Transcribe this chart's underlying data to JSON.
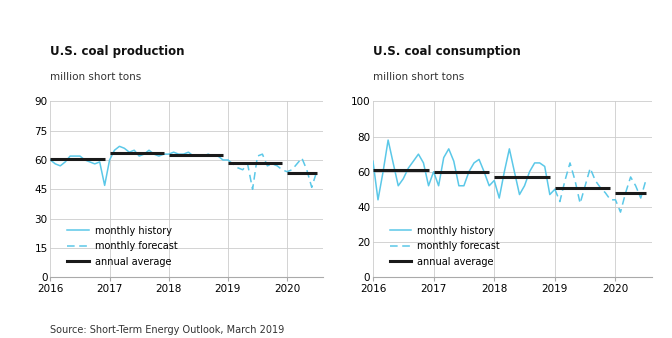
{
  "prod_title": "U.S. coal production",
  "prod_subtitle": "million short tons",
  "cons_title": "U.S. coal consumption",
  "cons_subtitle": "million short tons",
  "source_text": "Source: Short-Term Energy Outlook, March 2019",
  "line_color": "#5bc8e8",
  "annual_color": "#1a1a1a",
  "background_color": "#ffffff",
  "grid_color": "#cccccc",
  "prod_ylim": [
    0,
    90
  ],
  "prod_yticks": [
    0,
    15,
    30,
    45,
    60,
    75,
    90
  ],
  "cons_ylim": [
    0,
    100
  ],
  "cons_yticks": [
    0,
    20,
    40,
    60,
    80,
    100
  ],
  "prod_history_x": [
    2016.0,
    2016.083,
    2016.167,
    2016.25,
    2016.333,
    2016.417,
    2016.5,
    2016.583,
    2016.667,
    2016.75,
    2016.833,
    2016.917,
    2017.0,
    2017.083,
    2017.167,
    2017.25,
    2017.333,
    2017.417,
    2017.5,
    2017.583,
    2017.667,
    2017.75,
    2017.833,
    2017.917,
    2018.0,
    2018.083,
    2018.167,
    2018.25,
    2018.333,
    2018.417,
    2018.5,
    2018.583,
    2018.667,
    2018.75,
    2018.833,
    2018.917,
    2019.0
  ],
  "prod_history_y": [
    60,
    58,
    57,
    59,
    62,
    62,
    62,
    60,
    59,
    58,
    59,
    47,
    60,
    65,
    67,
    66,
    64,
    65,
    62,
    63,
    65,
    63,
    62,
    63,
    63,
    64,
    63,
    63,
    64,
    62,
    62,
    62,
    63,
    62,
    62,
    60,
    60
  ],
  "prod_forecast_x": [
    2019.0,
    2019.083,
    2019.167,
    2019.25,
    2019.333,
    2019.417,
    2019.5,
    2019.583,
    2019.667,
    2019.75,
    2019.833,
    2019.917,
    2020.0,
    2020.083,
    2020.167,
    2020.25,
    2020.333,
    2020.417,
    2020.5
  ],
  "prod_forecast_y": [
    60,
    58,
    56,
    55,
    58,
    45,
    62,
    63,
    57,
    58,
    57,
    55,
    54,
    55,
    58,
    61,
    55,
    46,
    54
  ],
  "prod_annual_segments": [
    {
      "x": [
        2016.0,
        2016.917
      ],
      "y": [
        60.5,
        60.5
      ]
    },
    {
      "x": [
        2017.0,
        2017.917
      ],
      "y": [
        63.5,
        63.5
      ]
    },
    {
      "x": [
        2018.0,
        2018.917
      ],
      "y": [
        62.5,
        62.5
      ]
    },
    {
      "x": [
        2019.0,
        2019.917
      ],
      "y": [
        58.5,
        58.5
      ]
    },
    {
      "x": [
        2020.0,
        2020.5
      ],
      "y": [
        53.5,
        53.5
      ]
    }
  ],
  "cons_history_x": [
    2016.0,
    2016.083,
    2016.167,
    2016.25,
    2016.333,
    2016.417,
    2016.5,
    2016.583,
    2016.667,
    2016.75,
    2016.833,
    2016.917,
    2017.0,
    2017.083,
    2017.167,
    2017.25,
    2017.333,
    2017.417,
    2017.5,
    2017.583,
    2017.667,
    2017.75,
    2017.833,
    2017.917,
    2018.0,
    2018.083,
    2018.167,
    2018.25,
    2018.333,
    2018.417,
    2018.5,
    2018.583,
    2018.667,
    2018.75,
    2018.833,
    2018.917,
    2019.0
  ],
  "cons_history_y": [
    66,
    44,
    60,
    78,
    65,
    52,
    56,
    62,
    66,
    70,
    65,
    52,
    60,
    52,
    68,
    73,
    66,
    52,
    52,
    60,
    65,
    67,
    60,
    52,
    55,
    45,
    60,
    73,
    60,
    47,
    52,
    60,
    65,
    65,
    63,
    47,
    50
  ],
  "cons_forecast_x": [
    2019.0,
    2019.083,
    2019.167,
    2019.25,
    2019.333,
    2019.417,
    2019.5,
    2019.583,
    2019.667,
    2019.75,
    2019.833,
    2019.917,
    2020.0,
    2020.083,
    2020.167,
    2020.25,
    2020.333,
    2020.417,
    2020.5
  ],
  "cons_forecast_y": [
    50,
    43,
    55,
    65,
    55,
    42,
    52,
    62,
    55,
    51,
    48,
    44,
    44,
    37,
    48,
    57,
    52,
    45,
    55
  ],
  "cons_annual_segments": [
    {
      "x": [
        2016.0,
        2016.917
      ],
      "y": [
        61,
        61
      ]
    },
    {
      "x": [
        2017.0,
        2017.917
      ],
      "y": [
        60,
        60
      ]
    },
    {
      "x": [
        2018.0,
        2018.917
      ],
      "y": [
        57,
        57
      ]
    },
    {
      "x": [
        2019.0,
        2019.917
      ],
      "y": [
        51,
        51
      ]
    },
    {
      "x": [
        2020.0,
        2020.5
      ],
      "y": [
        48,
        48
      ]
    }
  ],
  "xlim": [
    2016.0,
    2020.6
  ],
  "xticks": [
    2016,
    2017,
    2018,
    2019,
    2020
  ],
  "xticklabels": [
    "2016",
    "2017",
    "2018",
    "2019",
    "2020"
  ],
  "legend_history": "monthly history",
  "legend_forecast": "monthly forecast",
  "legend_annual": "annual average"
}
